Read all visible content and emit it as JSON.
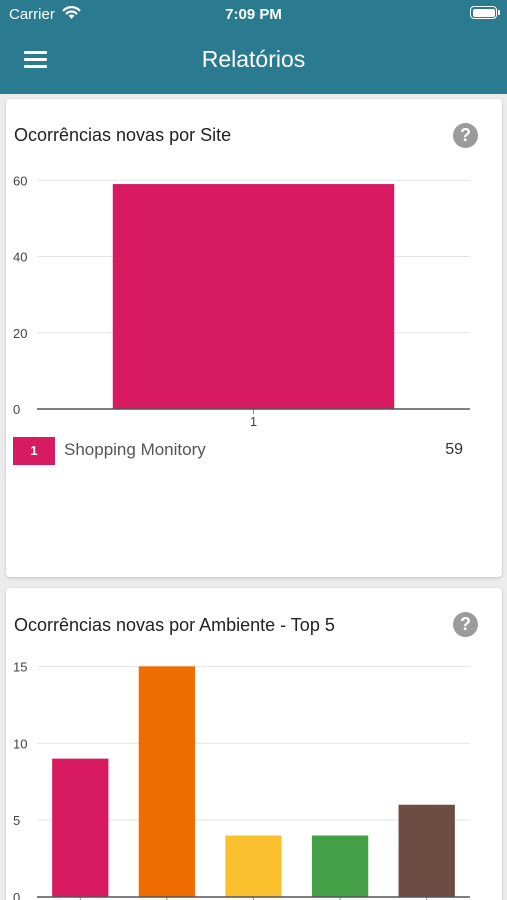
{
  "status_bar": {
    "carrier": "Carrier",
    "time": "7:09 PM",
    "wifi_icon": "wifi-icon",
    "battery_icon": "battery-icon"
  },
  "header": {
    "title": "Relatórios",
    "menu_icon": "hamburger-menu-icon",
    "background": "#2a7a90"
  },
  "cards": [
    {
      "title": "Ocorrências novas por Site",
      "help_icon": "help-icon",
      "help_label": "?",
      "legend": [
        {
          "index": "1",
          "name": "Shopping Monitory",
          "value": "59",
          "color": "#d81b60"
        }
      ]
    },
    {
      "title": "Ocorrências novas por Ambiente - Top 5",
      "help_icon": "help-icon",
      "help_label": "?"
    }
  ],
  "chart_data": [
    {
      "type": "bar",
      "title": "Ocorrências novas por Site",
      "categories": [
        "1"
      ],
      "values": [
        59
      ],
      "colors": [
        "#d81b60"
      ],
      "yticks": [
        0,
        20,
        40,
        60
      ],
      "ylim": [
        0,
        64
      ],
      "grid": true
    },
    {
      "type": "bar",
      "title": "Ocorrências novas por Ambiente - Top 5",
      "categories": [
        "",
        "",
        "",
        "",
        ""
      ],
      "values": [
        9,
        15,
        4,
        4,
        6
      ],
      "colors": [
        "#d81b60",
        "#ef6c00",
        "#fbc02d",
        "#43a047",
        "#6d4c41"
      ],
      "yticks": [
        0,
        5,
        10,
        15
      ],
      "ylim": [
        0,
        16
      ],
      "grid": true
    }
  ]
}
